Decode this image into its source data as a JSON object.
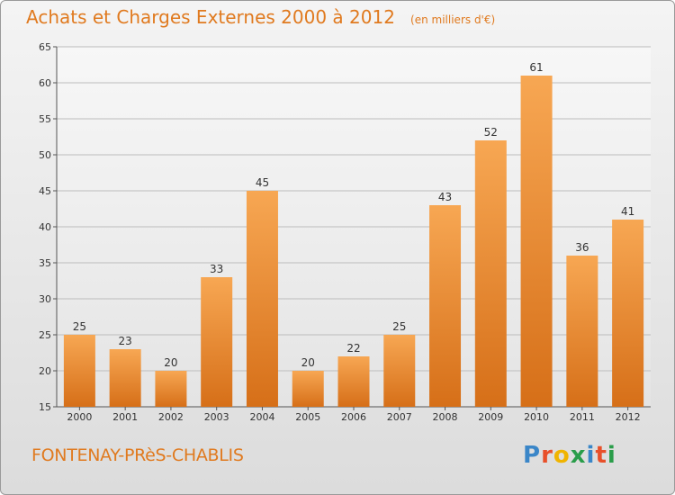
{
  "chart_data": {
    "type": "bar",
    "title": "Achats et Charges Externes 2000 à 2012",
    "subtitle": "(en milliers d'€)",
    "categories": [
      "2000",
      "2001",
      "2002",
      "2003",
      "2004",
      "2005",
      "2006",
      "2007",
      "2008",
      "2009",
      "2010",
      "2011",
      "2012"
    ],
    "values": [
      25,
      23,
      20,
      33,
      45,
      20,
      22,
      25,
      43,
      52,
      61,
      36,
      41
    ],
    "ylim": [
      15,
      65
    ],
    "yticks": [
      15,
      20,
      25,
      30,
      35,
      40,
      45,
      50,
      55,
      60,
      65
    ],
    "grid": true,
    "bar_color": "#f08a2c"
  },
  "footer": {
    "commune": "FONTENAY-PRèS-CHABLIS",
    "logo_text": "Proxiti",
    "logo_colors": [
      "#3a86c8",
      "#e8502a",
      "#f0b400",
      "#2a9d4a",
      "#3a86c8",
      "#e8502a",
      "#2a9d4a"
    ]
  }
}
